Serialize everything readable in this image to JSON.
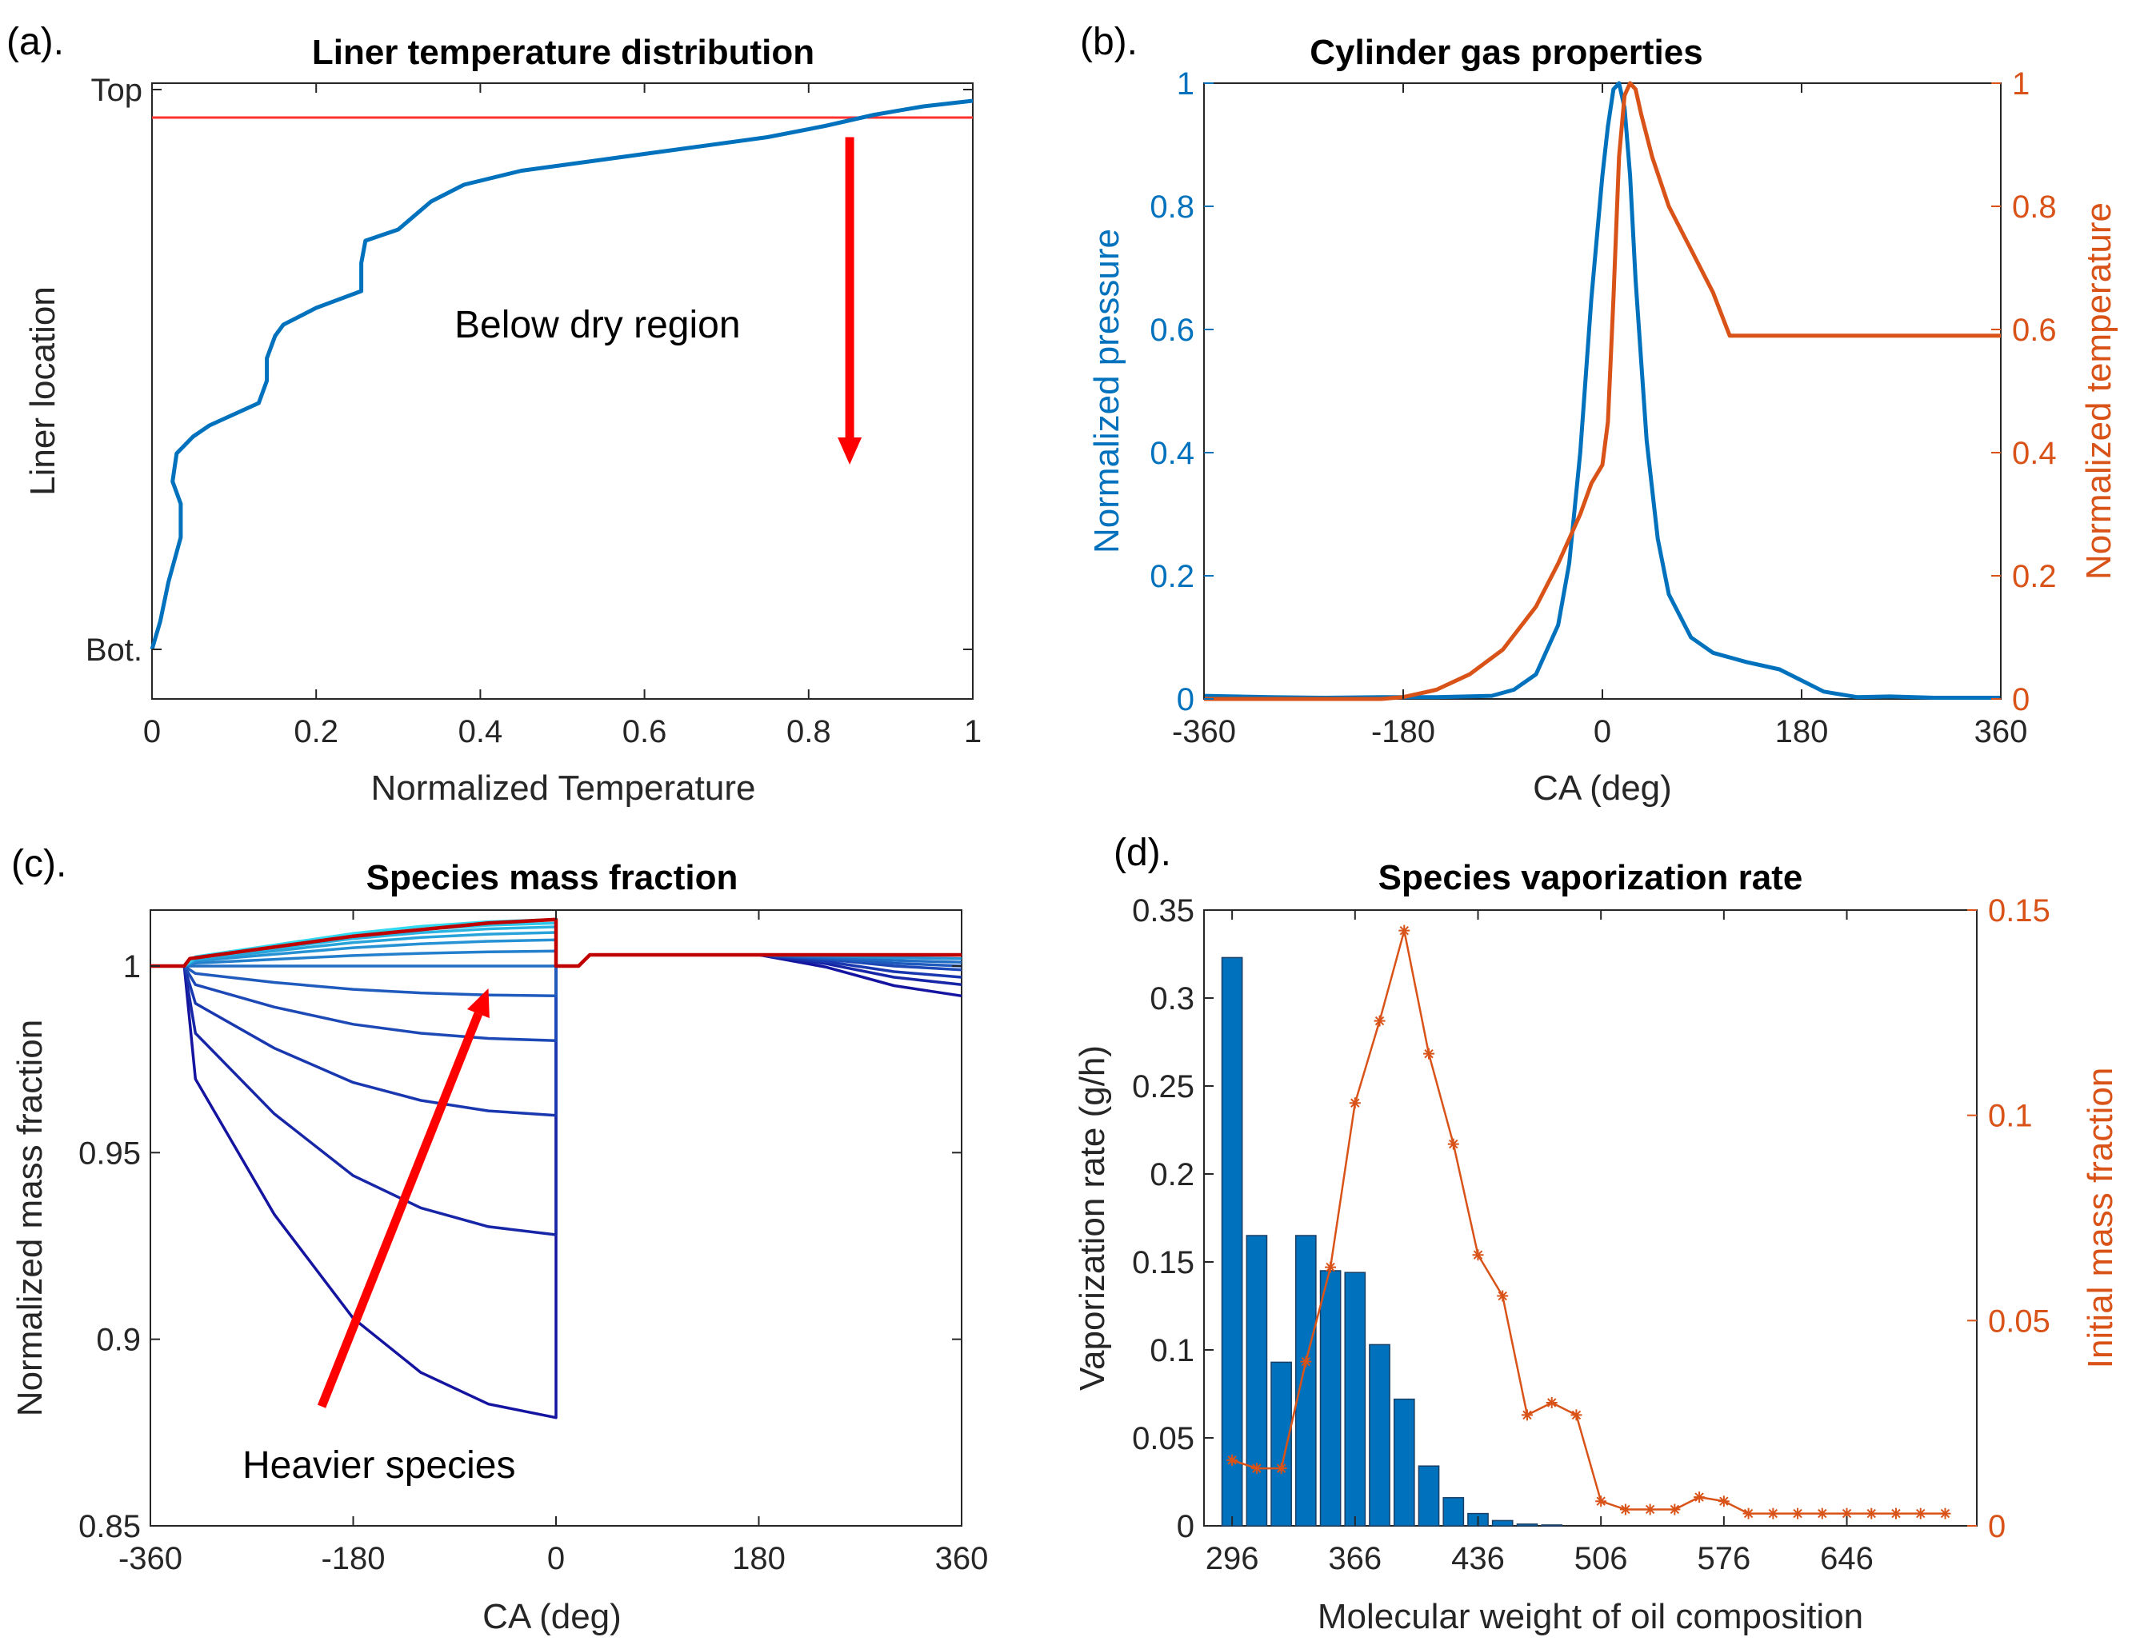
{
  "colors": {
    "blue": "#0072BD",
    "orange": "#D95319",
    "red": "#FF0000",
    "dark_red": "#C00000",
    "bar": "#0072BD",
    "axis": "#262626"
  },
  "chart_data": [
    {
      "id": "a",
      "panel_label": "(a).",
      "type": "line",
      "title": "Liner temperature distribution",
      "xlabel": "Normalized Temperature",
      "ylabel": "Liner location",
      "xlim": [
        0,
        1
      ],
      "ylim": [
        0,
        1
      ],
      "xticks": [
        0,
        0.2,
        0.4,
        0.6,
        0.8,
        1
      ],
      "xtick_labels": [
        "0",
        "0.2",
        "0.4",
        "0.6",
        "0.8",
        "1"
      ],
      "yticks": [
        0,
        1
      ],
      "ytick_labels": [
        "Bot.",
        "Top"
      ],
      "series": [
        {
          "name": "temperature",
          "color": "#0072BD",
          "x": [
            0.0,
            0.01,
            0.02,
            0.035,
            0.035,
            0.025,
            0.03,
            0.05,
            0.07,
            0.1,
            0.13,
            0.14,
            0.14,
            0.15,
            0.16,
            0.2,
            0.255,
            0.255,
            0.26,
            0.3,
            0.34,
            0.38,
            0.45,
            0.55,
            0.65,
            0.75,
            0.82,
            0.88,
            0.94,
            1.0
          ],
          "y": [
            0.0,
            0.05,
            0.12,
            0.2,
            0.26,
            0.3,
            0.35,
            0.38,
            0.4,
            0.42,
            0.44,
            0.48,
            0.52,
            0.56,
            0.58,
            0.61,
            0.64,
            0.69,
            0.73,
            0.75,
            0.8,
            0.83,
            0.855,
            0.875,
            0.895,
            0.915,
            0.935,
            0.955,
            0.97,
            0.98
          ]
        }
      ],
      "hline": {
        "y": 0.95,
        "color": "#FF3030"
      },
      "arrow": {
        "x": 0.85,
        "y_from": 0.915,
        "y_to": 0.33,
        "color": "#FF0000"
      },
      "annotation": "Below dry region"
    },
    {
      "id": "b",
      "panel_label": "(b).",
      "type": "line",
      "title": "Cylinder gas properties",
      "xlabel": "CA (deg)",
      "ylabel": "Normalized pressure",
      "y2label": "Normalized temperature",
      "xlim": [
        -360,
        360
      ],
      "ylim": [
        0,
        1
      ],
      "y2lim": [
        0,
        1
      ],
      "xticks": [
        -360,
        -180,
        0,
        180,
        360
      ],
      "xtick_labels": [
        "-360",
        "-180",
        "0",
        "180",
        "360"
      ],
      "yticks": [
        0,
        0.2,
        0.4,
        0.6,
        0.8,
        1
      ],
      "ytick_labels": [
        "0",
        "0.2",
        "0.4",
        "0.6",
        "0.8",
        "1"
      ],
      "series": [
        {
          "name": "Normalized pressure",
          "axis": "left",
          "color": "#0072BD",
          "x": [
            -360,
            -300,
            -250,
            -200,
            -150,
            -100,
            -80,
            -60,
            -40,
            -30,
            -20,
            -10,
            0,
            5,
            10,
            15,
            20,
            25,
            30,
            40,
            50,
            60,
            80,
            100,
            130,
            160,
            180,
            200,
            230,
            260,
            300,
            360
          ],
          "y": [
            0.005,
            0.003,
            0.002,
            0.003,
            0.003,
            0.005,
            0.015,
            0.04,
            0.12,
            0.22,
            0.4,
            0.65,
            0.85,
            0.93,
            0.99,
            1.0,
            0.96,
            0.85,
            0.68,
            0.42,
            0.26,
            0.17,
            0.1,
            0.075,
            0.06,
            0.048,
            0.03,
            0.012,
            0.003,
            0.004,
            0.002,
            0.002
          ]
        },
        {
          "name": "Normalized temperature",
          "axis": "right",
          "color": "#D95319",
          "x": [
            -360,
            -250,
            -200,
            -180,
            -150,
            -120,
            -90,
            -60,
            -40,
            -20,
            -10,
            0,
            5,
            10,
            15,
            20,
            25,
            30,
            35,
            45,
            60,
            80,
            100,
            115,
            360
          ],
          "y": [
            0.0,
            0.0,
            0.0,
            0.003,
            0.015,
            0.04,
            0.08,
            0.15,
            0.22,
            0.3,
            0.35,
            0.38,
            0.45,
            0.65,
            0.88,
            0.98,
            1.0,
            0.99,
            0.95,
            0.88,
            0.8,
            0.73,
            0.66,
            0.59,
            0.59
          ]
        }
      ]
    },
    {
      "id": "c",
      "panel_label": "(c).",
      "type": "line",
      "title": "Species mass fraction",
      "xlabel": "CA (deg)",
      "ylabel": "Normalized mass fraction",
      "xlim": [
        -360,
        360
      ],
      "ylim": [
        0.85,
        1.015
      ],
      "xticks": [
        -360,
        -180,
        0,
        180,
        360
      ],
      "xtick_labels": [
        "-360",
        "-180",
        "0",
        "180",
        "360"
      ],
      "yticks": [
        0.85,
        0.9,
        0.95,
        1
      ],
      "ytick_labels": [
        "0.85",
        "0.9",
        "0.95",
        "1"
      ],
      "final_values": [
        0.879,
        0.928,
        0.96,
        0.98,
        0.992,
        1.0,
        1.004,
        1.007,
        1.009,
        1.0105,
        1.0115,
        1.0125
      ],
      "tail_values": [
        0.992,
        0.995,
        0.997,
        0.999,
        1.0,
        1.001,
        1.002,
        1.002,
        1.003,
        1.003,
        1.003,
        1.003
      ],
      "arrow": {
        "x_from": -208,
        "y_from": 0.882,
        "x_to": -60,
        "y_to": 0.994,
        "color": "#FF0000"
      },
      "annotation": "Heavier species"
    },
    {
      "id": "d",
      "panel_label": "(d).",
      "type": "bar",
      "title": "Species vaporization rate",
      "xlabel": "Molecular weight of oil composition",
      "ylabel": "Vaporization rate (g/h)",
      "y2label": "Initial mass fraction",
      "xlim": [
        280,
        720
      ],
      "ylim": [
        0,
        0.35
      ],
      "y2lim": [
        0,
        0.15
      ],
      "xticks": [
        296,
        366,
        436,
        506,
        576,
        646
      ],
      "xtick_labels": [
        "296",
        "366",
        "436",
        "506",
        "576",
        "646"
      ],
      "yticks": [
        0,
        0.05,
        0.1,
        0.15,
        0.2,
        0.25,
        0.3,
        0.35
      ],
      "ytick_labels": [
        "0",
        "0.05",
        "0.1",
        "0.15",
        "0.2",
        "0.25",
        "0.3",
        "0.35"
      ],
      "y2ticks": [
        0,
        0.05,
        0.1,
        0.15
      ],
      "y2tick_labels": [
        "0",
        "0.05",
        "0.1",
        "0.15"
      ],
      "x": [
        296,
        310,
        324,
        338,
        352,
        366,
        380,
        394,
        408,
        422,
        436,
        450,
        464,
        478,
        492,
        506,
        520,
        534,
        548,
        562,
        576,
        590,
        604,
        618,
        632,
        646,
        660,
        674,
        688,
        702
      ],
      "bar_values": [
        0.323,
        0.165,
        0.093,
        0.165,
        0.145,
        0.144,
        0.103,
        0.072,
        0.034,
        0.016,
        0.007,
        0.003,
        0.001,
        0.0005,
        0,
        0,
        0,
        0,
        0,
        0,
        0,
        0,
        0,
        0,
        0,
        0,
        0,
        0,
        0,
        0
      ],
      "mass_fraction": [
        0.016,
        0.014,
        0.014,
        0.04,
        0.063,
        0.103,
        0.123,
        0.145,
        0.115,
        0.093,
        0.066,
        0.056,
        0.027,
        0.03,
        0.027,
        0.006,
        0.004,
        0.004,
        0.004,
        0.007,
        0.006,
        0.003,
        0.003,
        0.003,
        0.003,
        0.003,
        0.003,
        0.003,
        0.003,
        0.003
      ],
      "bar_color": "#0072BD",
      "line_color": "#D95319"
    }
  ]
}
